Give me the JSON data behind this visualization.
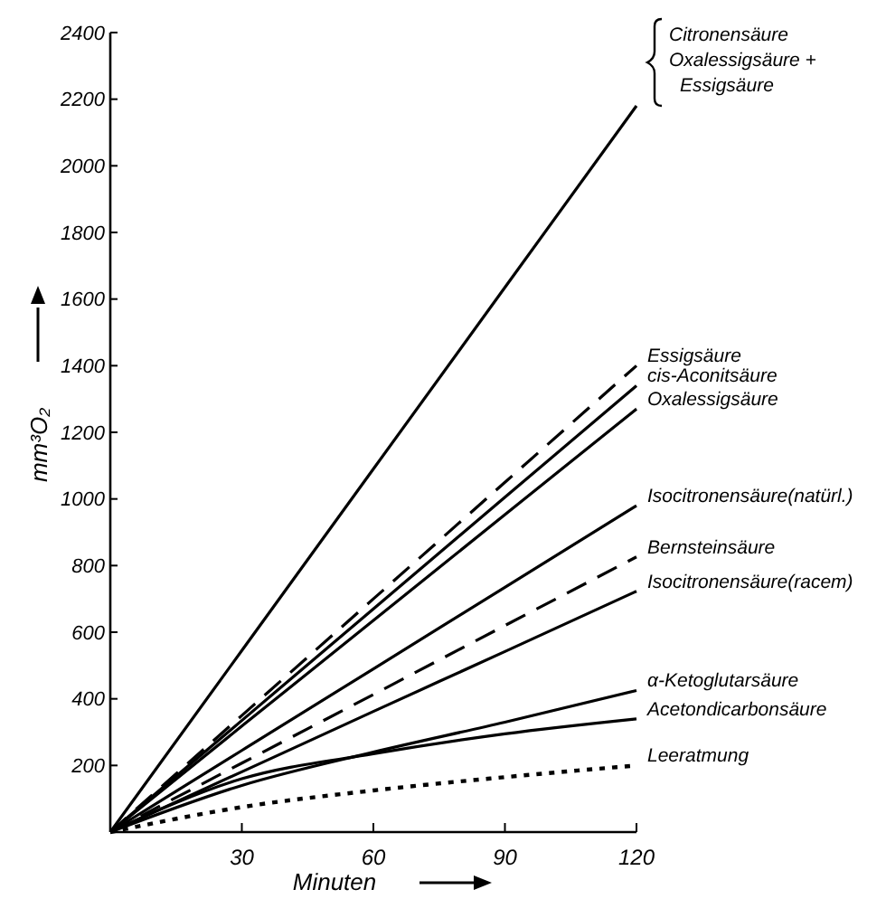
{
  "chart_data": {
    "type": "line",
    "xlabel": "Minuten",
    "ylabel": "mm³O₂",
    "xlim": [
      0,
      120
    ],
    "ylim": [
      0,
      2400
    ],
    "xticks": [
      30,
      60,
      90,
      120
    ],
    "yticks": [
      200,
      400,
      600,
      800,
      1000,
      1200,
      1400,
      1600,
      1800,
      2000,
      2200,
      2400
    ],
    "grid": false,
    "marker": "none",
    "x": [
      0,
      30,
      60,
      90,
      120
    ],
    "series": [
      {
        "name": "Citronensäure\nOxalessigsäure +\nEssigsäure",
        "color": "#000000",
        "line_style": "solid",
        "values": [
          0,
          545,
          1090,
          1635,
          2180
        ]
      },
      {
        "name": "Essigsäure",
        "color": "#000000",
        "line_style": "dashed",
        "values": [
          0,
          350,
          700,
          1050,
          1400
        ]
      },
      {
        "name": "cis-Aconitsäure",
        "color": "#000000",
        "line_style": "solid",
        "values": [
          0,
          335,
          670,
          1005,
          1340
        ]
      },
      {
        "name": "Oxalessigsäure",
        "color": "#000000",
        "line_style": "solid",
        "values": [
          0,
          318,
          635,
          953,
          1270
        ]
      },
      {
        "name": "Isocitronensäure(natürl.)",
        "color": "#000000",
        "line_style": "solid",
        "values": [
          0,
          245,
          490,
          735,
          980
        ]
      },
      {
        "name": "Bernsteinsäure",
        "color": "#000000",
        "line_style": "dashed",
        "values": [
          0,
          207,
          413,
          620,
          826
        ]
      },
      {
        "name": "Isocitronensäure(racem)",
        "color": "#000000",
        "line_style": "solid",
        "values": [
          0,
          181,
          362,
          542,
          723
        ]
      },
      {
        "name": "α-Ketoglutarsäure",
        "color": "#000000",
        "line_style": "solid",
        "values": [
          0,
          140,
          240,
          330,
          425
        ]
      },
      {
        "name": "Acetondicarbonsäure",
        "color": "#000000",
        "line_style": "solid",
        "values": [
          0,
          160,
          235,
          295,
          340
        ]
      },
      {
        "name": "Leeratmung",
        "color": "#000000",
        "line_style": "dotted",
        "values": [
          0,
          75,
          125,
          165,
          200
        ]
      }
    ]
  }
}
